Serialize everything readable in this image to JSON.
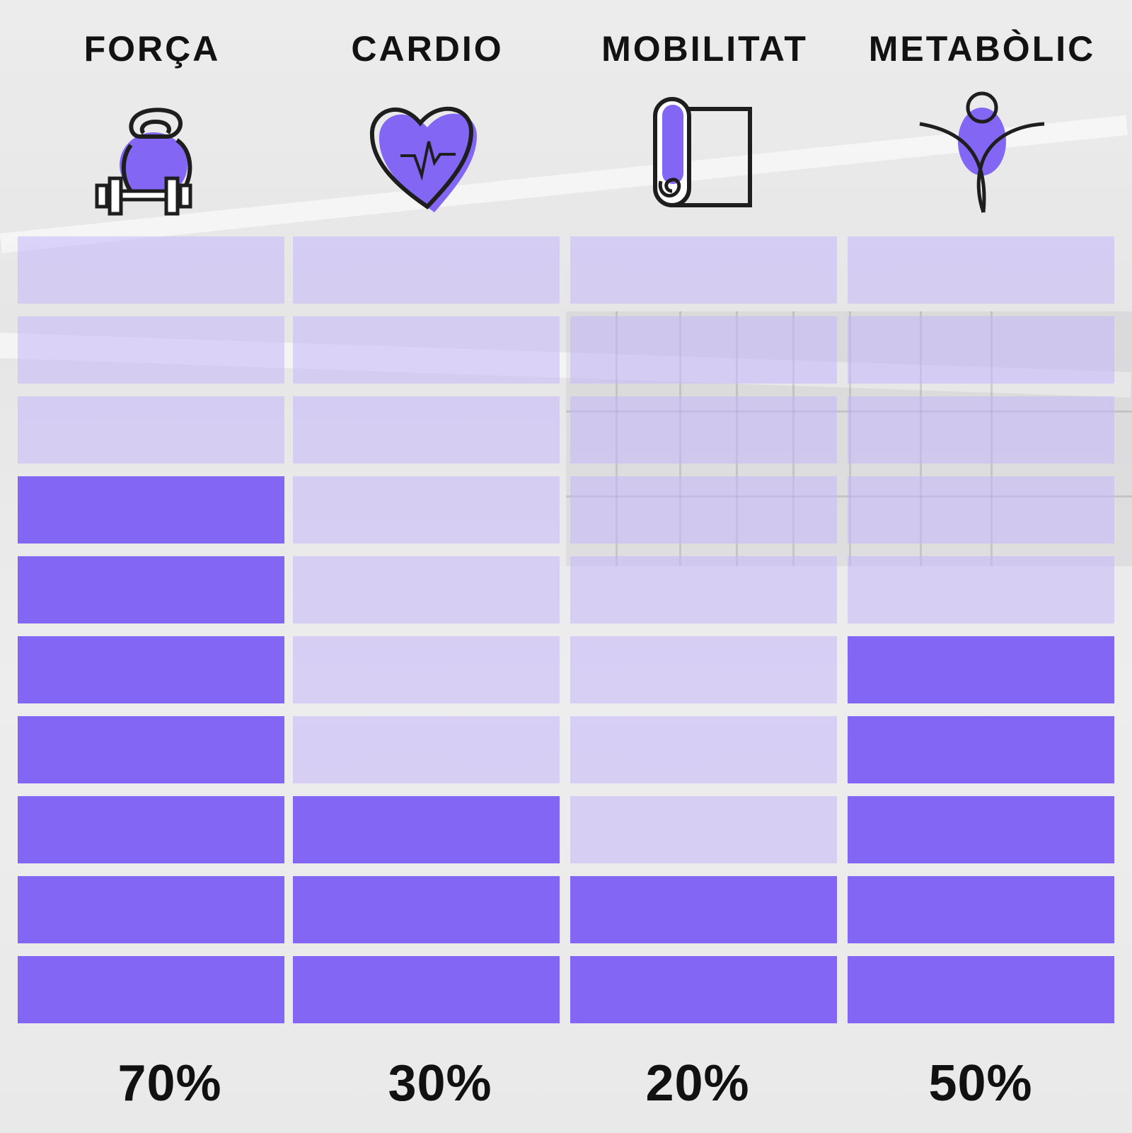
{
  "chart_data": {
    "type": "bar",
    "categories": [
      "FORÇA",
      "CARDIO",
      "MOBILITAT",
      "METABÒLIC"
    ],
    "values": [
      70,
      30,
      20,
      50
    ],
    "value_labels": [
      "70%",
      "30%",
      "20%",
      "50%"
    ],
    "ylim": [
      0,
      100
    ],
    "segments": 10,
    "title": "",
    "xlabel": "",
    "ylabel": "",
    "grid": false,
    "colors": {
      "filled": "#8466f4",
      "empty": "#c4b6fa",
      "text": "#121212"
    }
  },
  "icons": [
    "kettlebell-dumbbell-icon",
    "heart-pulse-icon",
    "yoga-mat-icon",
    "jumping-figure-icon"
  ]
}
